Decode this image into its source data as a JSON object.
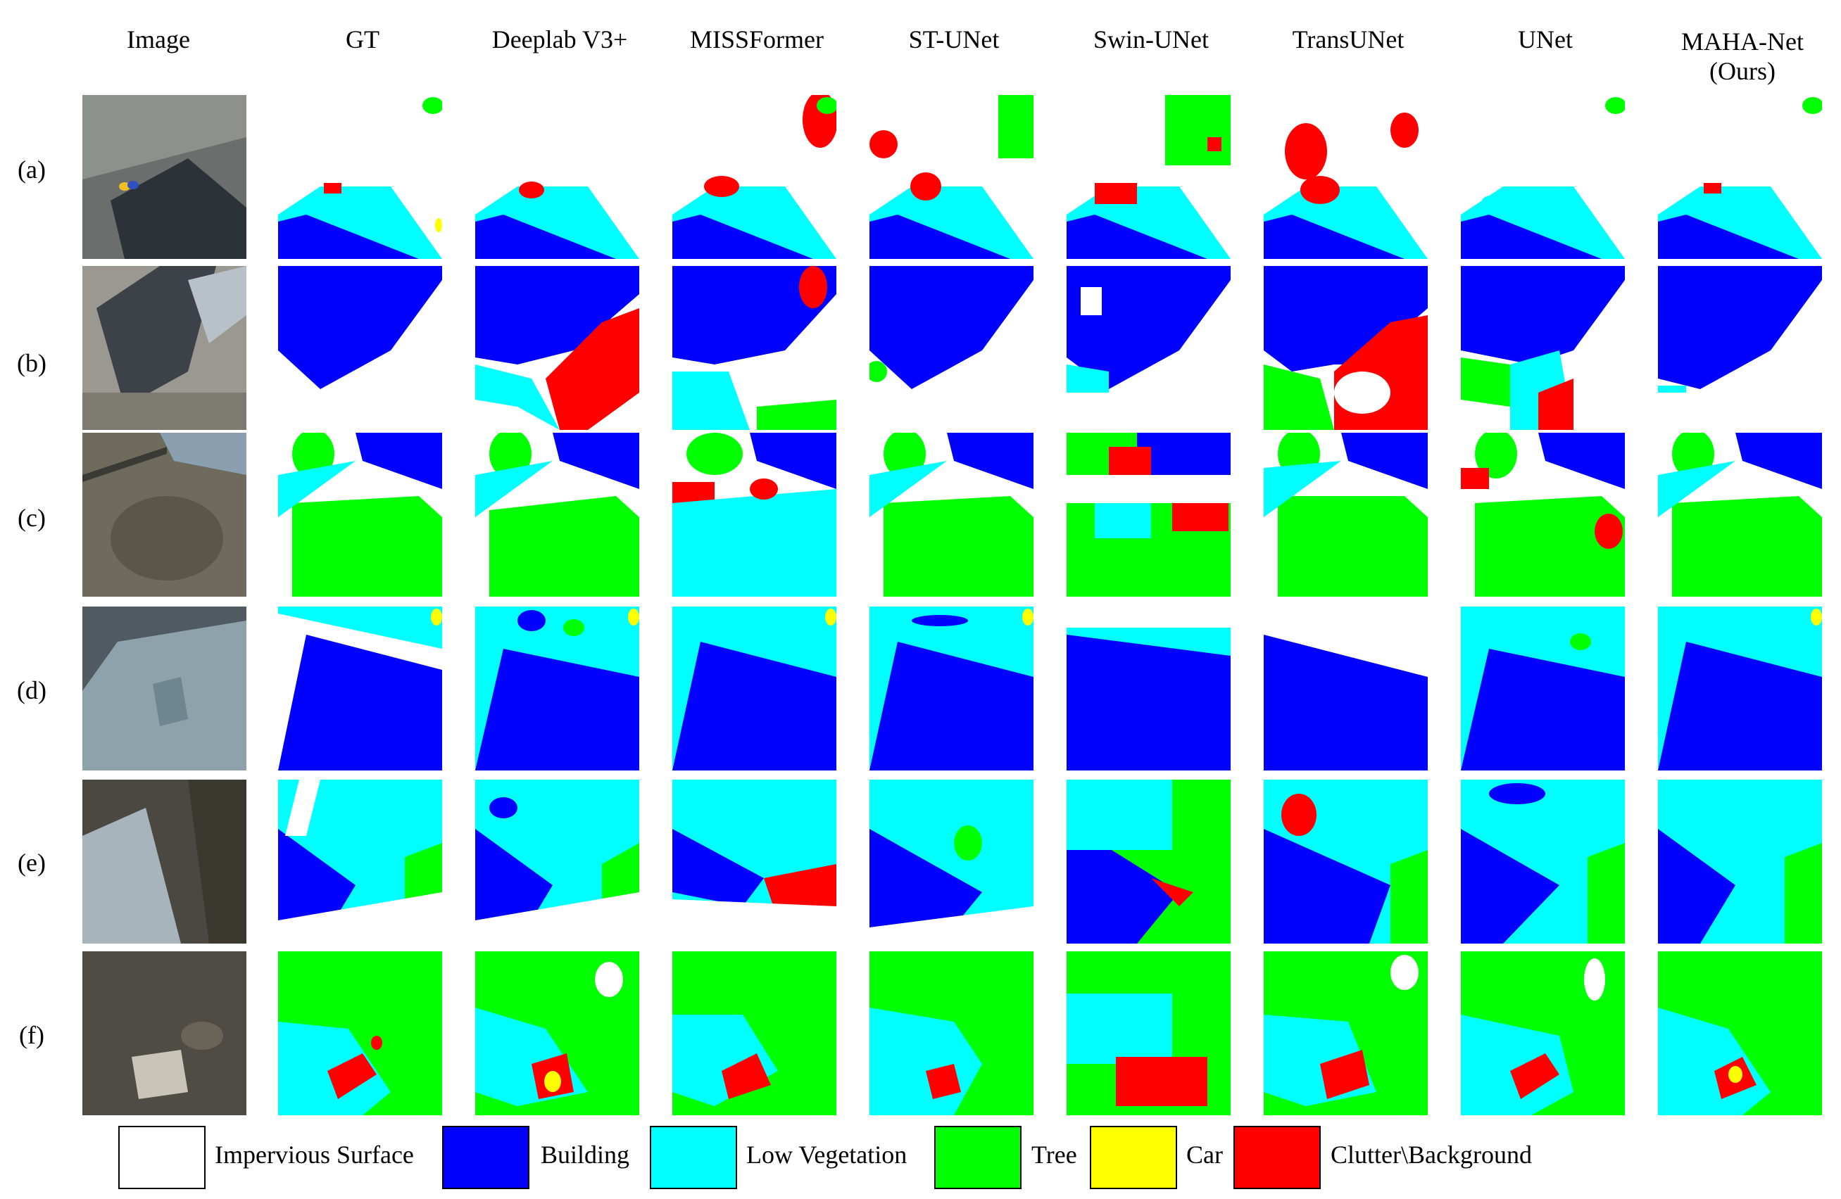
{
  "figure": {
    "columns": [
      "Image",
      "GT",
      "Deeplab V3+",
      "MISSFormer",
      "ST-UNet",
      "Swin-UNet",
      "TransUNet",
      "UNet",
      "MAHA-Net\n(Ours)"
    ],
    "rows": [
      "(a)",
      "(b)",
      "(c)",
      "(d)",
      "(e)",
      "(f)"
    ]
  },
  "legend": [
    {
      "label": "Impervious Surface",
      "color": "#ffffff"
    },
    {
      "label": "Building",
      "color": "#0000ff"
    },
    {
      "label": "Low Vegetation",
      "color": "#00ffff"
    },
    {
      "label": "Tree",
      "color": "#00ff00"
    },
    {
      "label": "Car",
      "color": "#ffff00"
    },
    {
      "label": "Clutter\\Background",
      "color": "#ff0000"
    }
  ]
}
